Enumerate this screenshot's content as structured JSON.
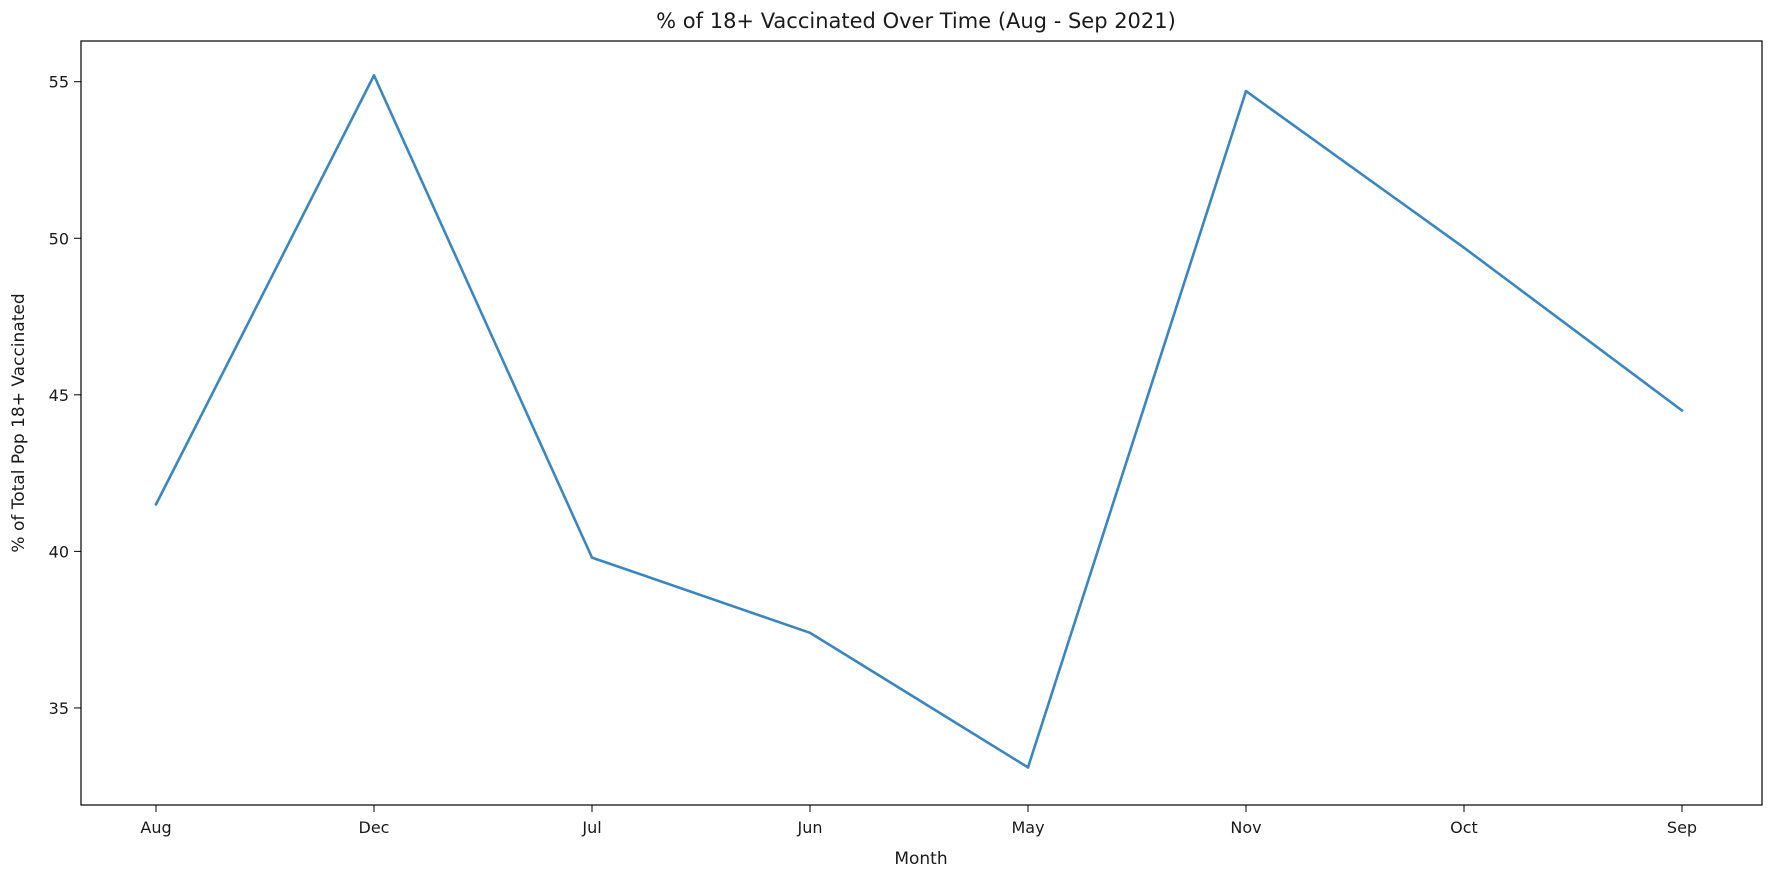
{
  "chart_data": {
    "type": "line",
    "title": "% of 18+ Vaccinated Over Time (Aug - Sep 2021)",
    "xlabel": "Month",
    "ylabel": "% of Total Pop 18+ Vaccinated",
    "categories": [
      "Aug",
      "Dec",
      "Jul",
      "Jun",
      "May",
      "Nov",
      "Oct",
      "Sep"
    ],
    "series": [
      {
        "values": [
          41.5,
          55.2,
          39.8,
          37.4,
          33.1,
          54.7,
          49.7,
          44.5
        ],
        "color": "#3b86be"
      }
    ],
    "ylim": [
      31.9,
      56.3
    ],
    "yticks": [
      35,
      40,
      45,
      50,
      55
    ],
    "grid": false,
    "legend": "none"
  }
}
